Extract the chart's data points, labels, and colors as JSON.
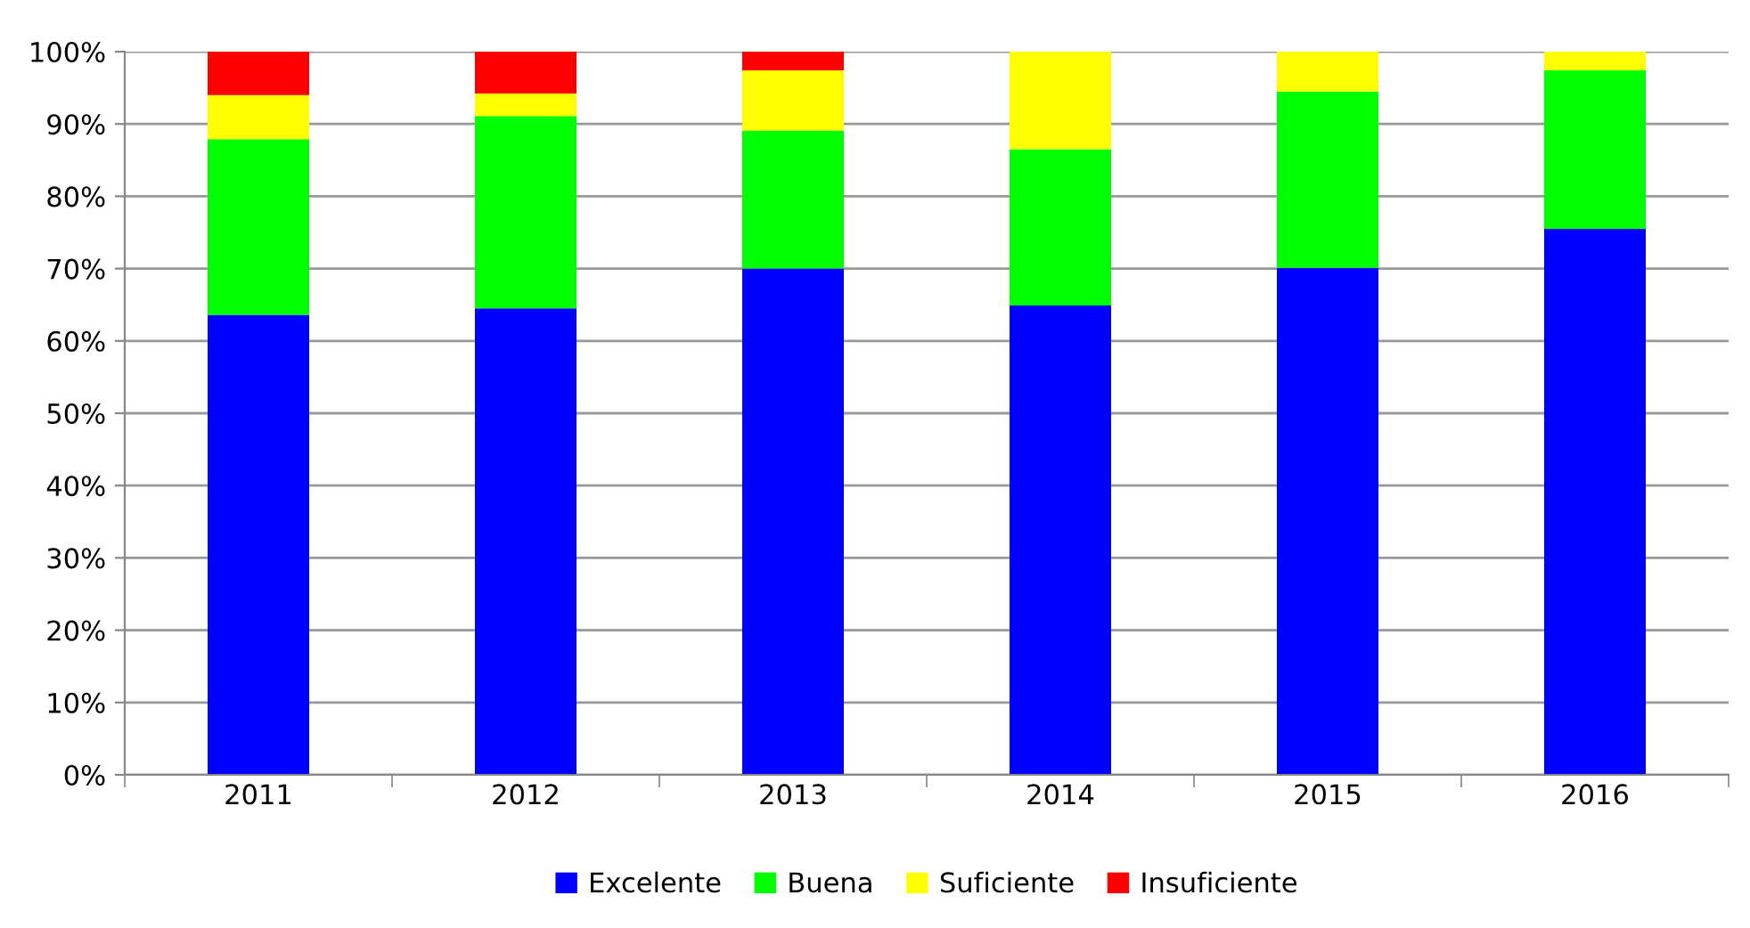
{
  "chart_data": {
    "type": "bar",
    "stacked": true,
    "categories": [
      "2011",
      "2012",
      "2013",
      "2014",
      "2015",
      "2016"
    ],
    "series": [
      {
        "name": "Excelente",
        "color": "#0000ff",
        "values": [
          63.6,
          64.5,
          70.0,
          64.9,
          70.1,
          75.5
        ]
      },
      {
        "name": "Buena",
        "color": "#00ff00",
        "values": [
          24.3,
          26.6,
          19.1,
          21.6,
          24.4,
          21.9
        ]
      },
      {
        "name": "Suficiente",
        "color": "#ffff00",
        "values": [
          6.1,
          3.1,
          8.3,
          13.5,
          5.5,
          2.6
        ]
      },
      {
        "name": "Insuficiente",
        "color": "#ff0000",
        "values": [
          6.0,
          5.8,
          2.6,
          0,
          0,
          0
        ]
      }
    ],
    "ylim": [
      0,
      100
    ],
    "yticks": [
      {
        "value": 0,
        "label": "0%"
      },
      {
        "value": 10,
        "label": "10%"
      },
      {
        "value": 20,
        "label": "20%"
      },
      {
        "value": 30,
        "label": "30%"
      },
      {
        "value": 40,
        "label": "40%"
      },
      {
        "value": 50,
        "label": "50%"
      },
      {
        "value": 60,
        "label": "60%"
      },
      {
        "value": 70,
        "label": "70%"
      },
      {
        "value": 80,
        "label": "80%"
      },
      {
        "value": 90,
        "label": "90%"
      },
      {
        "value": 100,
        "label": "100%"
      }
    ],
    "grid": "y",
    "legend": "bottom"
  }
}
